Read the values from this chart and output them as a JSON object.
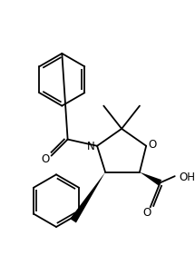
{
  "background_color": "#ffffff",
  "line_color": "#000000",
  "line_width": 1.3,
  "figsize": [
    2.15,
    2.81
  ],
  "dpi": 100,
  "xlim": [
    0,
    215
  ],
  "ylim": [
    0,
    281
  ]
}
